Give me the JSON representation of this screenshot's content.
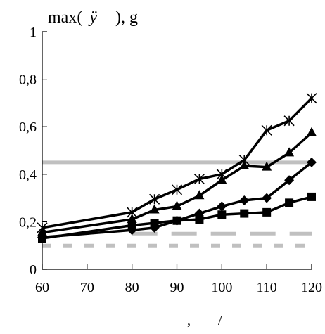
{
  "chart_data": {
    "type": "line",
    "title_prefix": "max(",
    "title_symbol": "ÿ",
    "title_suffix": "), g",
    "xlabel_parts": [
      ",",
      "/"
    ],
    "xlim": [
      60,
      120
    ],
    "ylim": [
      0,
      1
    ],
    "x_ticks": [
      "60",
      "70",
      "80",
      "90",
      "100",
      "110",
      "120"
    ],
    "y_ticks": [
      "0",
      "0,2",
      "0,4",
      "0,6",
      "0,8",
      "1"
    ],
    "x_tick_values": [
      60,
      70,
      80,
      90,
      100,
      110,
      120
    ],
    "y_tick_values": [
      0,
      0.2,
      0.4,
      0.6,
      0.8,
      1
    ],
    "grid": false,
    "series": [
      {
        "marker": "star",
        "color": "#000000",
        "x": [
          60,
          80,
          85,
          90,
          95,
          100,
          105,
          110,
          115,
          120
        ],
        "y": [
          0.175,
          0.24,
          0.295,
          0.335,
          0.38,
          0.4,
          0.46,
          0.585,
          0.625,
          0.72
        ]
      },
      {
        "marker": "triangle",
        "color": "#000000",
        "x": [
          60,
          80,
          85,
          90,
          95,
          100,
          105,
          110,
          115,
          120
        ],
        "y": [
          0.155,
          0.21,
          0.25,
          0.265,
          0.31,
          0.375,
          0.435,
          0.43,
          0.49,
          0.575
        ]
      },
      {
        "marker": "diamond",
        "color": "#000000",
        "x": [
          60,
          80,
          85,
          90,
          95,
          100,
          105,
          110,
          115,
          120
        ],
        "y": [
          0.135,
          0.165,
          0.175,
          0.205,
          0.235,
          0.265,
          0.29,
          0.3,
          0.375,
          0.45
        ]
      },
      {
        "marker": "square",
        "color": "#000000",
        "x": [
          60,
          80,
          85,
          90,
          95,
          100,
          105,
          110,
          115,
          120
        ],
        "y": [
          0.13,
          0.185,
          0.195,
          0.205,
          0.21,
          0.23,
          0.235,
          0.24,
          0.28,
          0.305
        ]
      }
    ],
    "reference_lines": [
      {
        "y": 0.45,
        "style": "solid",
        "color": "#c0c0c0",
        "x_from": 60,
        "x_to": 120
      },
      {
        "y": 0.15,
        "style": "long-dash",
        "color": "#c0c0c0",
        "x_from": 80,
        "x_to": 120
      },
      {
        "y": 0.1,
        "style": "short-dash",
        "color": "#c0c0c0",
        "x_from": 60,
        "x_to": 120
      }
    ]
  }
}
